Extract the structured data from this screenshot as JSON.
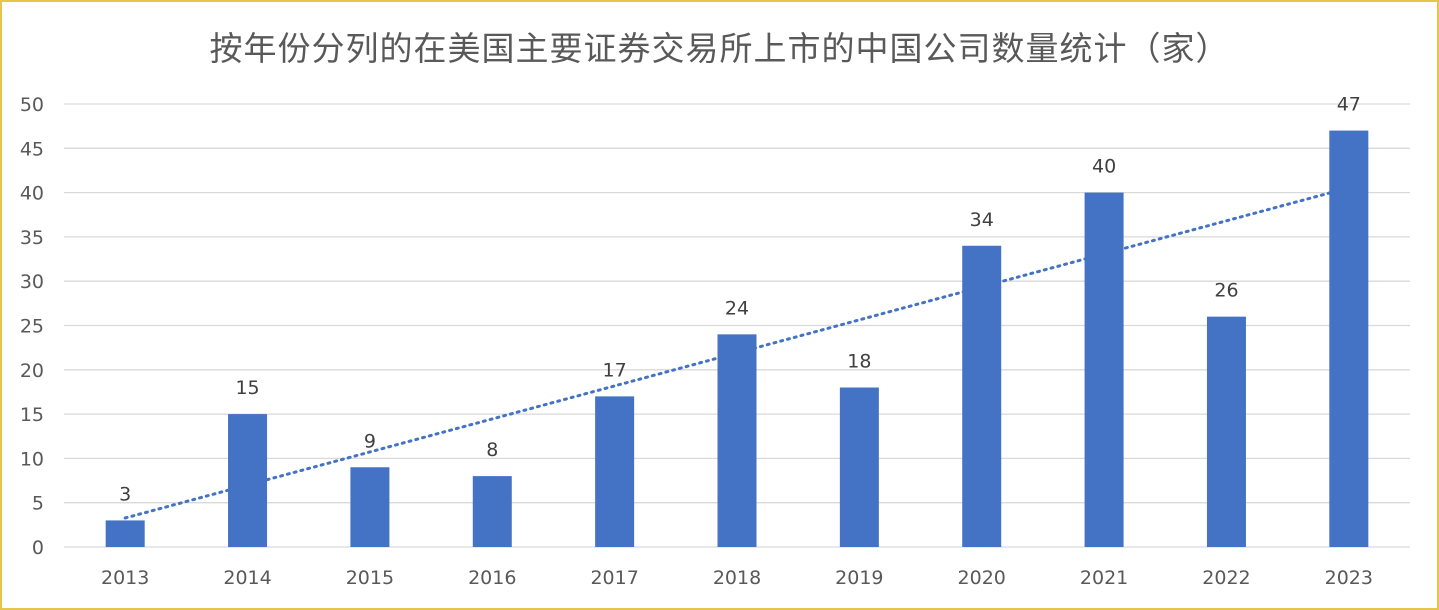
{
  "chart_data": {
    "type": "bar",
    "title": "按年份分列的在美国主要证券交易所上市的中国公司数量统计（家）",
    "categories": [
      "2013",
      "2014",
      "2015",
      "2016",
      "2017",
      "2018",
      "2019",
      "2020",
      "2021",
      "2022",
      "2023"
    ],
    "values": [
      3,
      15,
      9,
      8,
      17,
      24,
      18,
      34,
      40,
      26,
      47
    ],
    "ylim": [
      0,
      50
    ],
    "yticks": [
      0,
      5,
      10,
      15,
      20,
      25,
      30,
      35,
      40,
      45,
      50
    ],
    "grid": true,
    "data_labels": true,
    "trendline": "linear",
    "colors": {
      "bar": "#4472c4",
      "trendline": "#4472c4",
      "grid": "#d9d9d9",
      "border": "#e6c64a"
    }
  }
}
